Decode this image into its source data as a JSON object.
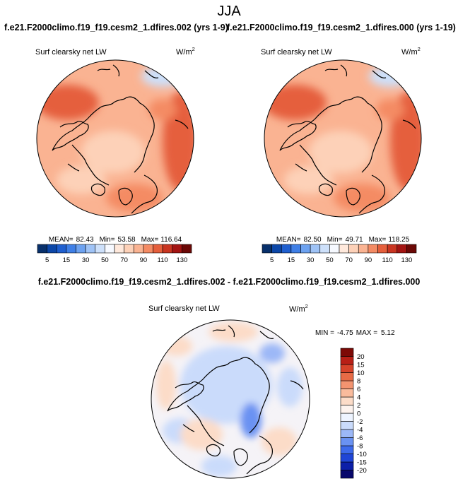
{
  "figure_title": "JJA",
  "case_a": "f.e21.F2000climo.f19_f19.cesm2_1.dfires.002 (yrs 1-9)",
  "case_b": "f.e21.F2000climo.f19_f19.cesm2_1.dfires.000 (yrs 1-19)",
  "diff_title": "f.e21.F2000climo.f19_f19.cesm2_1.dfires.002 - f.e21.F2000climo.f19_f19.cesm2_1.dfires.000",
  "chart_data": [
    {
      "type": "heatmap",
      "projection": "polar stereographic (north pole)",
      "title": "f.e21.F2000climo.f19_f19.cesm2_1.dfires.002 (yrs 1-9)",
      "variable": "Surf clearsky net LW",
      "units_base": "W/m",
      "units_exp": "2",
      "stats": {
        "mean_label": "MEAN=",
        "mean": "82.43",
        "min_label": "Min=",
        "min": "53.58",
        "max_label": "Max=",
        "max": "116.64"
      },
      "colorbar": {
        "orientation": "horizontal",
        "levels": [
          5,
          10,
          15,
          20,
          30,
          40,
          50,
          60,
          70,
          80,
          90,
          100,
          110,
          120,
          130
        ],
        "tick_labels": [
          "5",
          "15",
          "30",
          "50",
          "70",
          "90",
          "110",
          "130"
        ],
        "colors": [
          "#08306b",
          "#0c47a8",
          "#1f5fcf",
          "#3f7fe6",
          "#6da2f0",
          "#9fc3f6",
          "#cde0fa",
          "#f6f9ff",
          "#ffe9dc",
          "#fdd1b8",
          "#fab392",
          "#f48b64",
          "#e55f3c",
          "#c93521",
          "#a31412",
          "#6b0806"
        ]
      }
    },
    {
      "type": "heatmap",
      "projection": "polar stereographic (north pole)",
      "title": "f.e21.F2000climo.f19_f19.cesm2_1.dfires.000 (yrs 1-19)",
      "variable": "Surf clearsky net LW",
      "units_base": "W/m",
      "units_exp": "2",
      "stats": {
        "mean_label": "MEAN=",
        "mean": "82.50",
        "min_label": "Min=",
        "min": "49.71",
        "max_label": "Max=",
        "max": "118.25"
      },
      "colorbar": {
        "orientation": "horizontal",
        "levels": [
          5,
          10,
          15,
          20,
          30,
          40,
          50,
          60,
          70,
          80,
          90,
          100,
          110,
          120,
          130
        ],
        "tick_labels": [
          "5",
          "15",
          "30",
          "50",
          "70",
          "90",
          "110",
          "130"
        ],
        "colors": [
          "#08306b",
          "#0c47a8",
          "#1f5fcf",
          "#3f7fe6",
          "#6da2f0",
          "#9fc3f6",
          "#cde0fa",
          "#f6f9ff",
          "#ffe9dc",
          "#fdd1b8",
          "#fab392",
          "#f48b64",
          "#e55f3c",
          "#c93521",
          "#a31412",
          "#6b0806"
        ]
      }
    },
    {
      "type": "heatmap",
      "projection": "polar stereographic (north pole)",
      "title": "f.e21.F2000climo.f19_f19.cesm2_1.dfires.002 - f.e21.F2000climo.f19_f19.cesm2_1.dfires.000",
      "variable": "Surf clearsky net LW",
      "units_base": "W/m",
      "units_exp": "2",
      "stats": {
        "min_label": "MIN =",
        "min": "-4.75",
        "max_label": "MAX =",
        "max": "5.12"
      },
      "colorbar": {
        "orientation": "vertical",
        "levels": [
          -20,
          -15,
          -10,
          -8,
          -6,
          -4,
          -2,
          0,
          2,
          4,
          6,
          8,
          10,
          15,
          20
        ],
        "tick_labels": [
          "-20",
          "-15",
          "-10",
          "-8",
          "-6",
          "-4",
          "-2",
          "0",
          "2",
          "4",
          "6",
          "8",
          "10",
          "15",
          "20"
        ],
        "colors": [
          "#08086b",
          "#0c1fa8",
          "#1f45d6",
          "#3d6aeb",
          "#6a92f2",
          "#9cb8f7",
          "#cadbfb",
          "#eef4ff",
          "#fdf3ee",
          "#fcdcc8",
          "#f9bb9c",
          "#f39470",
          "#e86b46",
          "#d6432a",
          "#b81f16",
          "#7d0906"
        ]
      }
    }
  ]
}
